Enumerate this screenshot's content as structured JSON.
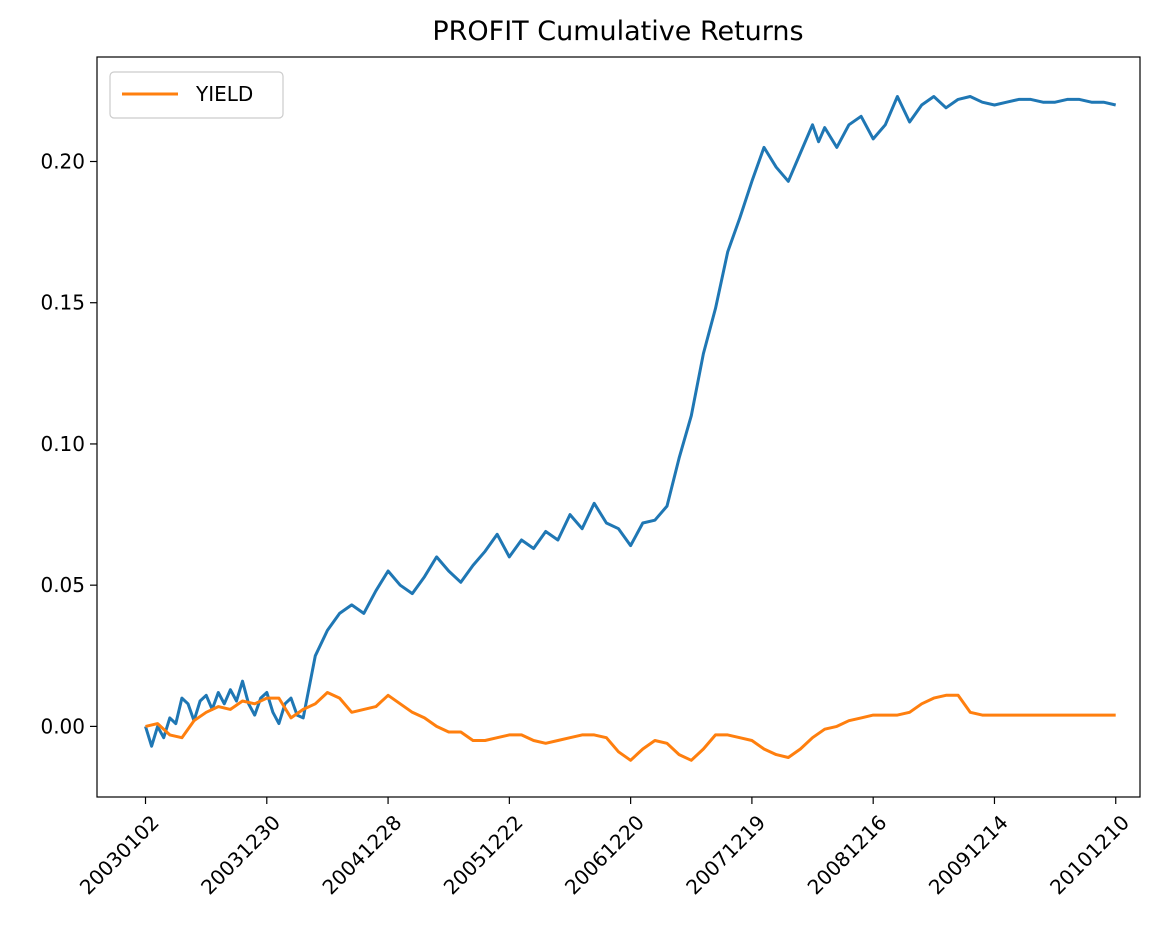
{
  "chart_data": {
    "type": "line",
    "title": "PROFIT Cumulative Returns",
    "xlabel": "",
    "ylabel": "",
    "x_tick_labels": [
      "20030102",
      "20031230",
      "20041228",
      "20051222",
      "20061220",
      "20071219",
      "20081216",
      "20091214",
      "20101210"
    ],
    "y_tick_labels": [
      "0.00",
      "0.05",
      "0.10",
      "0.15",
      "0.20"
    ],
    "y_ticks": [
      0.0,
      0.05,
      0.1,
      0.15,
      0.2
    ],
    "ylim": [
      -0.025,
      0.237
    ],
    "xlim": [
      -0.4,
      8.2
    ],
    "grid": false,
    "legend": {
      "position": "upper-left",
      "entries": [
        "YIELD"
      ]
    },
    "series": [
      {
        "color": "#1f77b4",
        "x": [
          0,
          0.05,
          0.1,
          0.15,
          0.2,
          0.25,
          0.3,
          0.35,
          0.4,
          0.45,
          0.5,
          0.55,
          0.6,
          0.65,
          0.7,
          0.75,
          0.8,
          0.85,
          0.9,
          0.95,
          1.0,
          1.05,
          1.1,
          1.15,
          1.2,
          1.25,
          1.3,
          1.4,
          1.5,
          1.6,
          1.7,
          1.8,
          1.9,
          2.0,
          2.1,
          2.2,
          2.3,
          2.4,
          2.5,
          2.6,
          2.7,
          2.8,
          2.9,
          3.0,
          3.1,
          3.2,
          3.3,
          3.4,
          3.5,
          3.6,
          3.7,
          3.8,
          3.9,
          4.0,
          4.1,
          4.2,
          4.3,
          4.4,
          4.5,
          4.6,
          4.7,
          4.8,
          4.9,
          5.0,
          5.1,
          5.2,
          5.3,
          5.4,
          5.5,
          5.55,
          5.6,
          5.7,
          5.8,
          5.9,
          6.0,
          6.1,
          6.2,
          6.3,
          6.4,
          6.5,
          6.6,
          6.7,
          6.8,
          6.9,
          7.0,
          7.1,
          7.2,
          7.3,
          7.4,
          7.5,
          7.6,
          7.7,
          7.8,
          7.9,
          8.0
        ],
        "values": [
          0.0,
          -0.007,
          0.0,
          -0.004,
          0.003,
          0.001,
          0.01,
          0.008,
          0.002,
          0.009,
          0.011,
          0.006,
          0.012,
          0.008,
          0.013,
          0.009,
          0.016,
          0.008,
          0.004,
          0.01,
          0.012,
          0.005,
          0.001,
          0.008,
          0.01,
          0.004,
          0.003,
          0.025,
          0.034,
          0.04,
          0.043,
          0.04,
          0.048,
          0.055,
          0.05,
          0.047,
          0.053,
          0.06,
          0.055,
          0.051,
          0.057,
          0.062,
          0.068,
          0.06,
          0.066,
          0.063,
          0.069,
          0.066,
          0.075,
          0.07,
          0.079,
          0.072,
          0.07,
          0.064,
          0.072,
          0.073,
          0.078,
          0.095,
          0.11,
          0.132,
          0.148,
          0.168,
          0.18,
          0.193,
          0.205,
          0.198,
          0.193,
          0.203,
          0.213,
          0.207,
          0.212,
          0.205,
          0.213,
          0.216,
          0.208,
          0.213,
          0.223,
          0.214,
          0.22,
          0.223,
          0.219,
          0.222,
          0.223,
          0.221,
          0.22,
          0.221,
          0.222,
          0.222,
          0.221,
          0.221,
          0.222,
          0.222,
          0.221,
          0.221,
          0.22
        ]
      },
      {
        "name": "YIELD",
        "color": "#ff7f0e",
        "x": [
          0,
          0.1,
          0.2,
          0.3,
          0.4,
          0.5,
          0.6,
          0.7,
          0.8,
          0.9,
          1.0,
          1.1,
          1.2,
          1.3,
          1.4,
          1.5,
          1.6,
          1.7,
          1.8,
          1.9,
          2.0,
          2.1,
          2.2,
          2.3,
          2.4,
          2.5,
          2.6,
          2.7,
          2.8,
          2.9,
          3.0,
          3.1,
          3.2,
          3.3,
          3.4,
          3.5,
          3.6,
          3.7,
          3.8,
          3.9,
          4.0,
          4.1,
          4.2,
          4.3,
          4.4,
          4.5,
          4.6,
          4.7,
          4.8,
          4.9,
          5.0,
          5.1,
          5.2,
          5.3,
          5.4,
          5.5,
          5.6,
          5.7,
          5.8,
          5.9,
          6.0,
          6.1,
          6.2,
          6.3,
          6.4,
          6.5,
          6.6,
          6.7,
          6.8,
          6.9,
          7.0,
          7.1,
          7.2,
          7.3,
          7.4,
          7.5,
          7.6,
          7.7,
          7.8,
          7.9,
          8.0
        ],
        "values": [
          0.0,
          0.001,
          -0.003,
          -0.004,
          0.002,
          0.005,
          0.007,
          0.006,
          0.009,
          0.008,
          0.01,
          0.01,
          0.003,
          0.006,
          0.008,
          0.012,
          0.01,
          0.005,
          0.006,
          0.007,
          0.011,
          0.008,
          0.005,
          0.003,
          0.0,
          -0.002,
          -0.002,
          -0.005,
          -0.005,
          -0.004,
          -0.003,
          -0.003,
          -0.005,
          -0.006,
          -0.005,
          -0.004,
          -0.003,
          -0.003,
          -0.004,
          -0.009,
          -0.012,
          -0.008,
          -0.005,
          -0.006,
          -0.01,
          -0.012,
          -0.008,
          -0.003,
          -0.003,
          -0.004,
          -0.005,
          -0.008,
          -0.01,
          -0.011,
          -0.008,
          -0.004,
          -0.001,
          0.0,
          0.002,
          0.003,
          0.004,
          0.004,
          0.004,
          0.005,
          0.008,
          0.01,
          0.011,
          0.011,
          0.005,
          0.004,
          0.004,
          0.004,
          0.004,
          0.004,
          0.004,
          0.004,
          0.004,
          0.004,
          0.004,
          0.004,
          0.004
        ]
      }
    ]
  }
}
